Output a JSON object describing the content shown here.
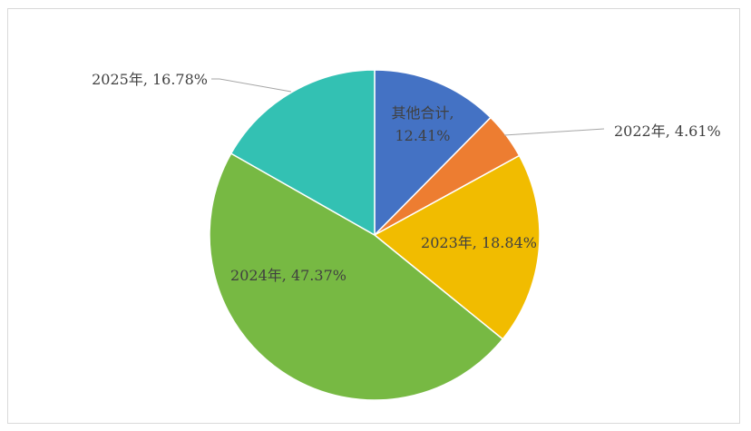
{
  "chart_data": {
    "type": "pie",
    "slices": [
      {
        "name": "其他合计",
        "value": 12.41,
        "label": "其他合计,",
        "label2": "12.41%",
        "color": "#4472C4"
      },
      {
        "name": "2022年",
        "value": 4.61,
        "label": "2022年, 4.61%",
        "color": "#ED7D31"
      },
      {
        "name": "2023年",
        "value": 18.84,
        "label": "2023年, 18.84%",
        "color": "#F1BC00"
      },
      {
        "name": "2024年",
        "value": 47.37,
        "label": "2024年, 47.37%",
        "color": "#77B943"
      },
      {
        "name": "2025年",
        "value": 16.78,
        "label": "2025年, 16.78%",
        "color": "#33C1B3"
      }
    ],
    "start_angle_deg": 0,
    "direction": "clockwise",
    "slice_border_color": "#ffffff",
    "leader_line_color": "#a6a6a6"
  }
}
